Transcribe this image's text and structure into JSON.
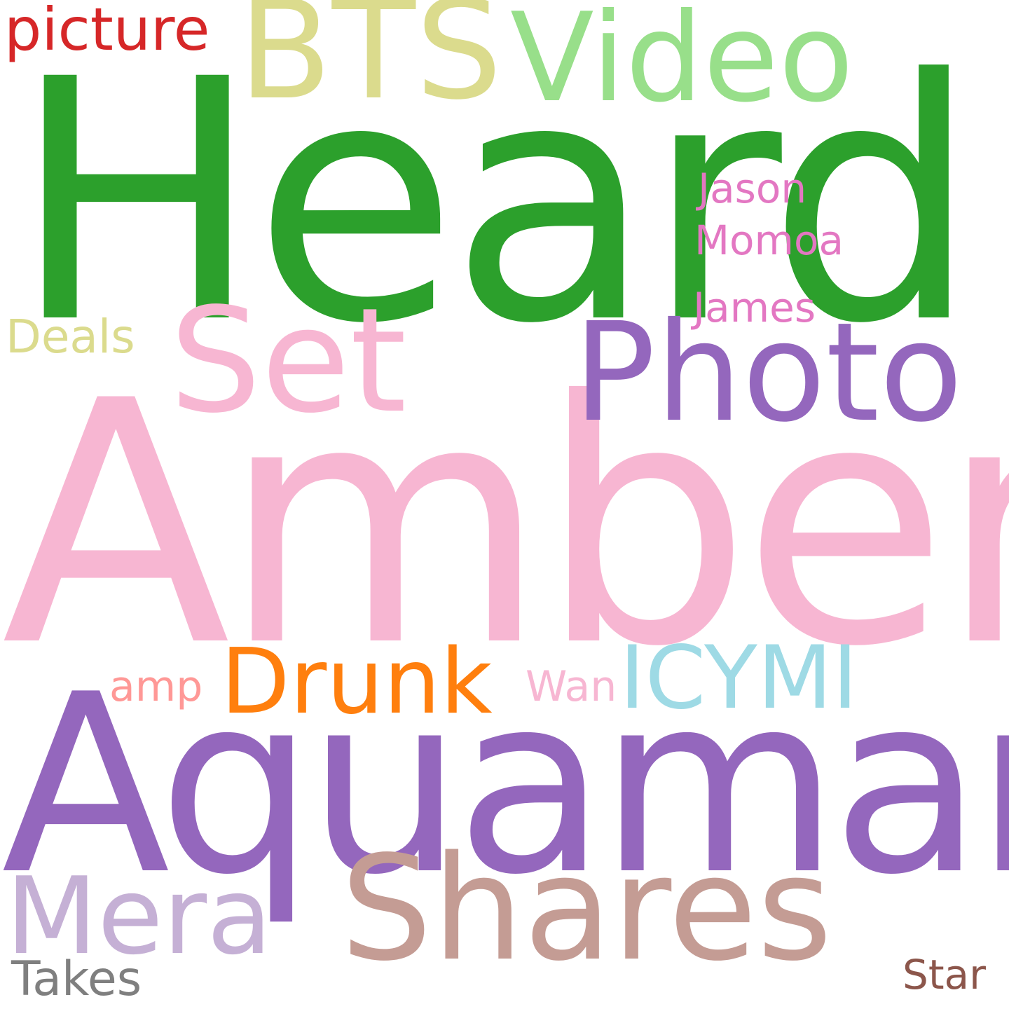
{
  "background": "#ffffff",
  "words": [
    {
      "text": "Heard",
      "color": "#2ca02c"
    },
    {
      "text": "Amber",
      "color": "#f7b6d2"
    },
    {
      "text": "Aquaman",
      "color": "#9467bd"
    },
    {
      "text": "BTS",
      "color": "#dbdb8d"
    },
    {
      "text": "Video",
      "color": "#98df8a"
    },
    {
      "text": "picture",
      "color": "#d62728"
    },
    {
      "text": "Photo",
      "color": "#9467bd"
    },
    {
      "text": "Set",
      "color": "#f7b6d2"
    },
    {
      "text": "Shares",
      "color": "#c49c94"
    },
    {
      "text": "Mera",
      "color": "#c5b0d5"
    },
    {
      "text": "Drunk",
      "color": "#ff7f0e"
    },
    {
      "text": "ICYMI",
      "color": "#9edae5"
    },
    {
      "text": "Jason",
      "color": "#e377c2"
    },
    {
      "text": "Momoa",
      "color": "#e377c2"
    },
    {
      "text": "James",
      "color": "#e377c2"
    },
    {
      "text": "Deals",
      "color": "#dbdb8d"
    },
    {
      "text": "amp",
      "color": "#ff9896"
    },
    {
      "text": "Wan",
      "color": "#f7b6d2"
    },
    {
      "text": "Takes",
      "color": "#7f7f7f"
    },
    {
      "text": "Star",
      "color": "#8c564b"
    }
  ]
}
